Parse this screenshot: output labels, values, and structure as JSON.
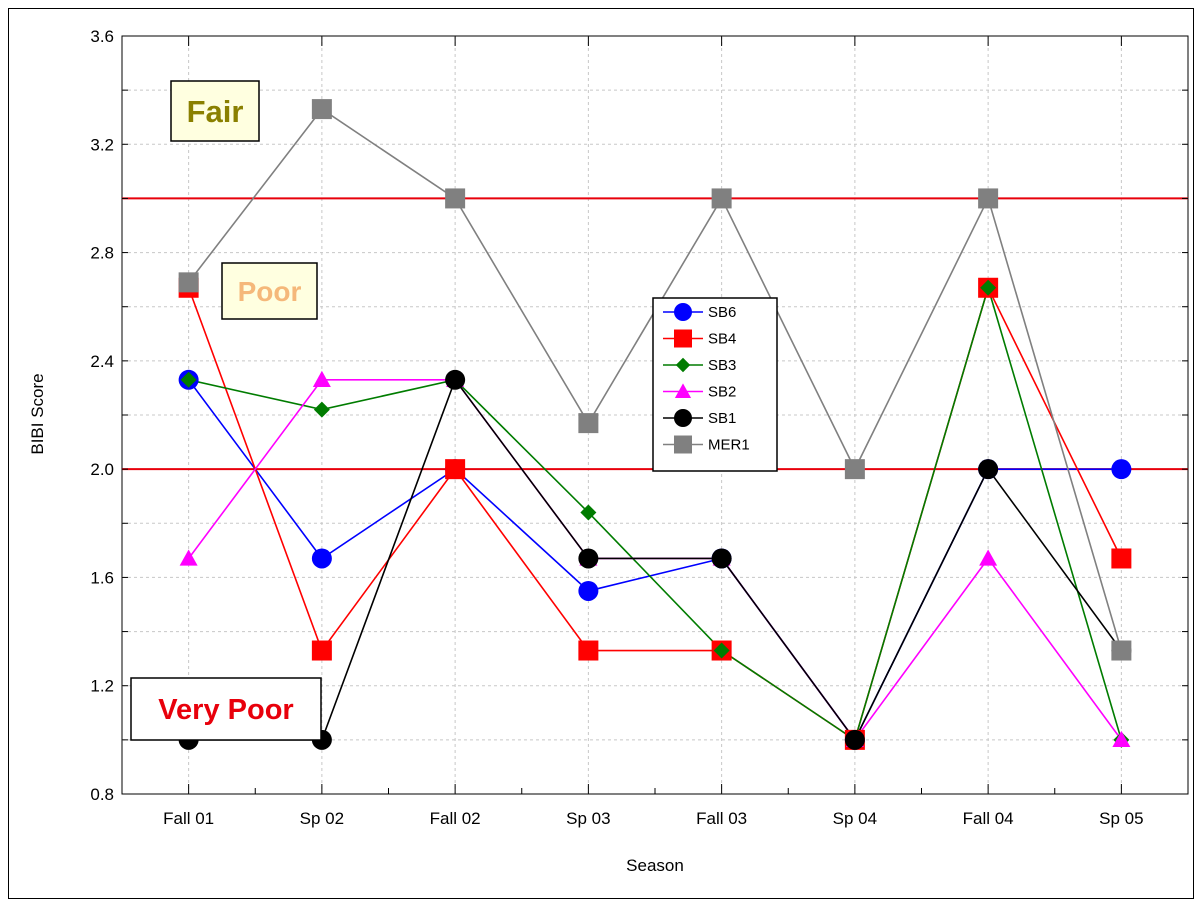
{
  "chart_data": {
    "type": "line",
    "xlabel": "Season",
    "ylabel": "BIBI Score",
    "categories": [
      "Fall 01",
      "Sp 02",
      "Fall 02",
      "Sp 03",
      "Fall 03",
      "Sp 04",
      "Fall 04",
      "Sp 05"
    ],
    "ylim": [
      0.8,
      3.6
    ],
    "yticks": [
      "0.8",
      "1.2",
      "1.6",
      "2.0",
      "2.4",
      "2.8",
      "3.2",
      "3.6"
    ],
    "grid": true,
    "legend_position": "center",
    "reference_lines": [
      {
        "value": 3.0,
        "color": "#e8000b"
      },
      {
        "value": 2.0,
        "color": "#e8000b"
      }
    ],
    "annotations": [
      {
        "text": "Fair",
        "color": "#8a8000",
        "background": "#ffffe0"
      },
      {
        "text": "Poor",
        "color": "#f5b87a",
        "background": "#ffffe0"
      },
      {
        "text": "Very Poor",
        "color": "#e8000b",
        "background": "#ffffff"
      }
    ],
    "series": [
      {
        "name": "SB6",
        "color": "#0000ff",
        "marker": "circle",
        "values": [
          2.33,
          1.67,
          2.0,
          1.55,
          1.67,
          1.0,
          2.0,
          2.0
        ]
      },
      {
        "name": "SB4",
        "color": "#ff0000",
        "marker": "square",
        "values": [
          2.67,
          1.33,
          2.0,
          1.33,
          1.33,
          1.0,
          2.67,
          1.67
        ]
      },
      {
        "name": "SB3",
        "color": "#007c00",
        "marker": "diamond",
        "values": [
          2.33,
          2.22,
          2.33,
          1.84,
          1.33,
          1.0,
          2.67,
          1.0
        ]
      },
      {
        "name": "SB2",
        "color": "#ff00ff",
        "marker": "triangle",
        "values": [
          1.67,
          2.33,
          2.33,
          1.67,
          1.67,
          1.0,
          1.67,
          1.0
        ]
      },
      {
        "name": "SB1",
        "color": "#000000",
        "marker": "circle",
        "values": [
          1.0,
          1.0,
          2.33,
          1.67,
          1.67,
          1.0,
          2.0,
          1.33
        ]
      },
      {
        "name": "MER1",
        "color": "#808080",
        "marker": "square",
        "values": [
          2.69,
          3.33,
          3.0,
          2.17,
          3.0,
          2.0,
          3.0,
          1.33
        ]
      }
    ]
  }
}
